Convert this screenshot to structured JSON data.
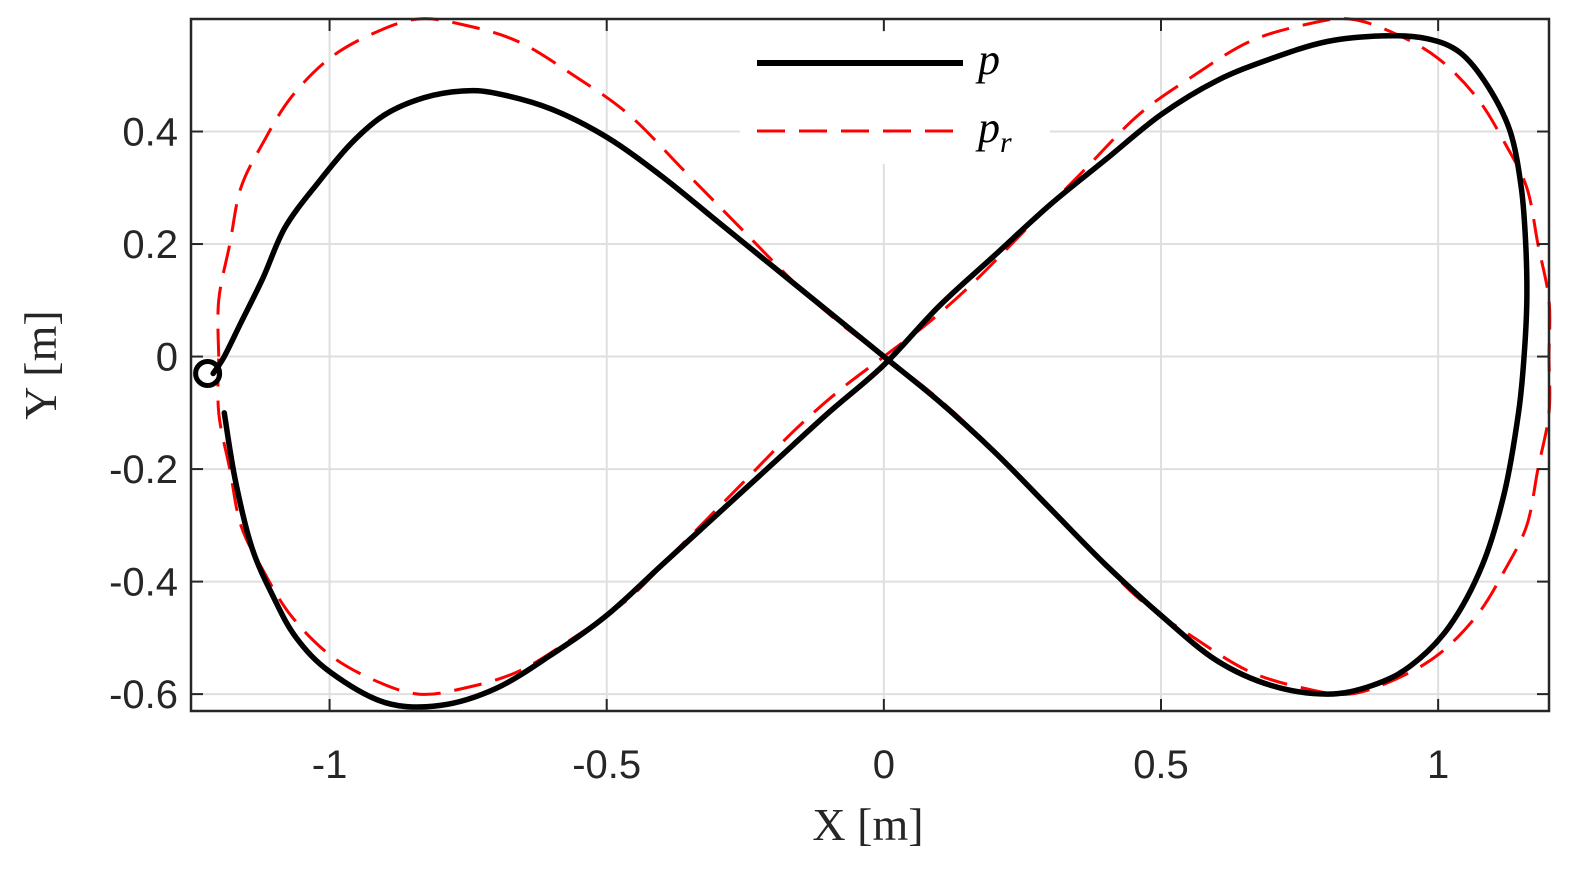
{
  "chart_data": {
    "type": "line",
    "xlabel": "X [m]",
    "ylabel": "Y [m]",
    "xlim": [
      -1.25,
      1.2
    ],
    "ylim": [
      -0.63,
      0.6
    ],
    "x_ticks": [
      -1,
      -0.5,
      0,
      0.5,
      1
    ],
    "x_tick_labels": [
      "-1",
      "-0.5",
      "0",
      "0.5",
      "1"
    ],
    "y_ticks": [
      -0.6,
      -0.4,
      -0.2,
      0,
      0.2,
      0.4
    ],
    "y_tick_labels": [
      "-0.6",
      "-0.4",
      "-0.2",
      "0",
      "0.2",
      "0.4"
    ],
    "grid": true,
    "legend_position": "top-center",
    "series": [
      {
        "name": "p",
        "legend_sub": "",
        "style": "solid",
        "color": "#000000",
        "points": [
          [
            -1.21,
            -0.03
          ],
          [
            -1.19,
            0.0
          ],
          [
            -1.16,
            0.06
          ],
          [
            -1.12,
            0.14
          ],
          [
            -1.08,
            0.23
          ],
          [
            -1.02,
            0.31
          ],
          [
            -0.96,
            0.38
          ],
          [
            -0.9,
            0.43
          ],
          [
            -0.83,
            0.46
          ],
          [
            -0.76,
            0.472
          ],
          [
            -0.7,
            0.468
          ],
          [
            -0.6,
            0.44
          ],
          [
            -0.5,
            0.39
          ],
          [
            -0.4,
            0.32
          ],
          [
            -0.3,
            0.24
          ],
          [
            -0.2,
            0.16
          ],
          [
            -0.1,
            0.08
          ],
          [
            0.0,
            0.0
          ],
          [
            0.1,
            -0.08
          ],
          [
            0.2,
            -0.17
          ],
          [
            0.3,
            -0.27
          ],
          [
            0.4,
            -0.37
          ],
          [
            0.5,
            -0.46
          ],
          [
            0.6,
            -0.54
          ],
          [
            0.7,
            -0.585
          ],
          [
            0.8,
            -0.6
          ],
          [
            0.88,
            -0.585
          ],
          [
            0.95,
            -0.55
          ],
          [
            1.02,
            -0.48
          ],
          [
            1.08,
            -0.37
          ],
          [
            1.12,
            -0.24
          ],
          [
            1.145,
            -0.1
          ],
          [
            1.155,
            0.0
          ],
          [
            1.16,
            0.1
          ],
          [
            1.158,
            0.2
          ],
          [
            1.15,
            0.3
          ],
          [
            1.13,
            0.4
          ],
          [
            1.09,
            0.48
          ],
          [
            1.04,
            0.54
          ],
          [
            0.98,
            0.565
          ],
          [
            0.9,
            0.57
          ],
          [
            0.8,
            0.56
          ],
          [
            0.7,
            0.53
          ],
          [
            0.6,
            0.49
          ],
          [
            0.5,
            0.43
          ],
          [
            0.4,
            0.35
          ],
          [
            0.3,
            0.27
          ],
          [
            0.2,
            0.18
          ],
          [
            0.1,
            0.09
          ],
          [
            0.0,
            -0.015
          ],
          [
            -0.1,
            -0.1
          ],
          [
            -0.2,
            -0.19
          ],
          [
            -0.3,
            -0.28
          ],
          [
            -0.4,
            -0.37
          ],
          [
            -0.5,
            -0.46
          ],
          [
            -0.6,
            -0.53
          ],
          [
            -0.7,
            -0.59
          ],
          [
            -0.8,
            -0.62
          ],
          [
            -0.9,
            -0.615
          ],
          [
            -1.0,
            -0.56
          ],
          [
            -1.06,
            -0.5
          ],
          [
            -1.1,
            -0.43
          ],
          [
            -1.14,
            -0.34
          ],
          [
            -1.17,
            -0.22
          ],
          [
            -1.19,
            -0.1
          ]
        ]
      },
      {
        "name": "p",
        "legend_sub": "r",
        "style": "dashed",
        "color": "#ff0000",
        "points": [
          [
            -1.2,
            0.0
          ],
          [
            -1.2,
            0.1
          ],
          [
            -1.18,
            0.2
          ],
          [
            -1.16,
            0.3
          ],
          [
            -1.12,
            0.38
          ],
          [
            -1.07,
            0.46
          ],
          [
            -1.0,
            0.53
          ],
          [
            -0.92,
            0.575
          ],
          [
            -0.84,
            0.6
          ],
          [
            -0.76,
            0.59
          ],
          [
            -0.66,
            0.56
          ],
          [
            -0.56,
            0.5
          ],
          [
            -0.46,
            0.43
          ],
          [
            -0.36,
            0.33
          ],
          [
            -0.26,
            0.23
          ],
          [
            -0.16,
            0.13
          ],
          [
            -0.08,
            0.06
          ],
          [
            0.0,
            0.0
          ],
          [
            0.08,
            -0.06
          ],
          [
            0.16,
            -0.13
          ],
          [
            0.26,
            -0.23
          ],
          [
            0.36,
            -0.33
          ],
          [
            0.46,
            -0.43
          ],
          [
            0.56,
            -0.5
          ],
          [
            0.66,
            -0.56
          ],
          [
            0.76,
            -0.59
          ],
          [
            0.84,
            -0.6
          ],
          [
            0.92,
            -0.575
          ],
          [
            1.0,
            -0.53
          ],
          [
            1.07,
            -0.46
          ],
          [
            1.12,
            -0.38
          ],
          [
            1.16,
            -0.3
          ],
          [
            1.18,
            -0.2
          ],
          [
            1.2,
            -0.1
          ],
          [
            1.2,
            0.0
          ],
          [
            1.2,
            0.1
          ],
          [
            1.18,
            0.2
          ],
          [
            1.16,
            0.3
          ],
          [
            1.12,
            0.38
          ],
          [
            1.07,
            0.46
          ],
          [
            1.0,
            0.53
          ],
          [
            0.92,
            0.575
          ],
          [
            0.84,
            0.6
          ],
          [
            0.76,
            0.59
          ],
          [
            0.66,
            0.56
          ],
          [
            0.56,
            0.5
          ],
          [
            0.46,
            0.43
          ],
          [
            0.36,
            0.33
          ],
          [
            0.26,
            0.23
          ],
          [
            0.16,
            0.13
          ],
          [
            0.08,
            0.06
          ],
          [
            0.0,
            0.0
          ],
          [
            -0.08,
            -0.06
          ],
          [
            -0.16,
            -0.13
          ],
          [
            -0.26,
            -0.23
          ],
          [
            -0.36,
            -0.33
          ],
          [
            -0.46,
            -0.43
          ],
          [
            -0.56,
            -0.5
          ],
          [
            -0.66,
            -0.56
          ],
          [
            -0.76,
            -0.59
          ],
          [
            -0.84,
            -0.6
          ],
          [
            -0.92,
            -0.575
          ],
          [
            -1.0,
            -0.53
          ],
          [
            -1.07,
            -0.46
          ],
          [
            -1.12,
            -0.38
          ],
          [
            -1.16,
            -0.3
          ],
          [
            -1.18,
            -0.2
          ],
          [
            -1.2,
            -0.1
          ],
          [
            -1.2,
            0.0
          ]
        ]
      }
    ],
    "start_marker": {
      "x": -1.22,
      "y": -0.03,
      "shape": "circle",
      "color": "#000000"
    }
  }
}
